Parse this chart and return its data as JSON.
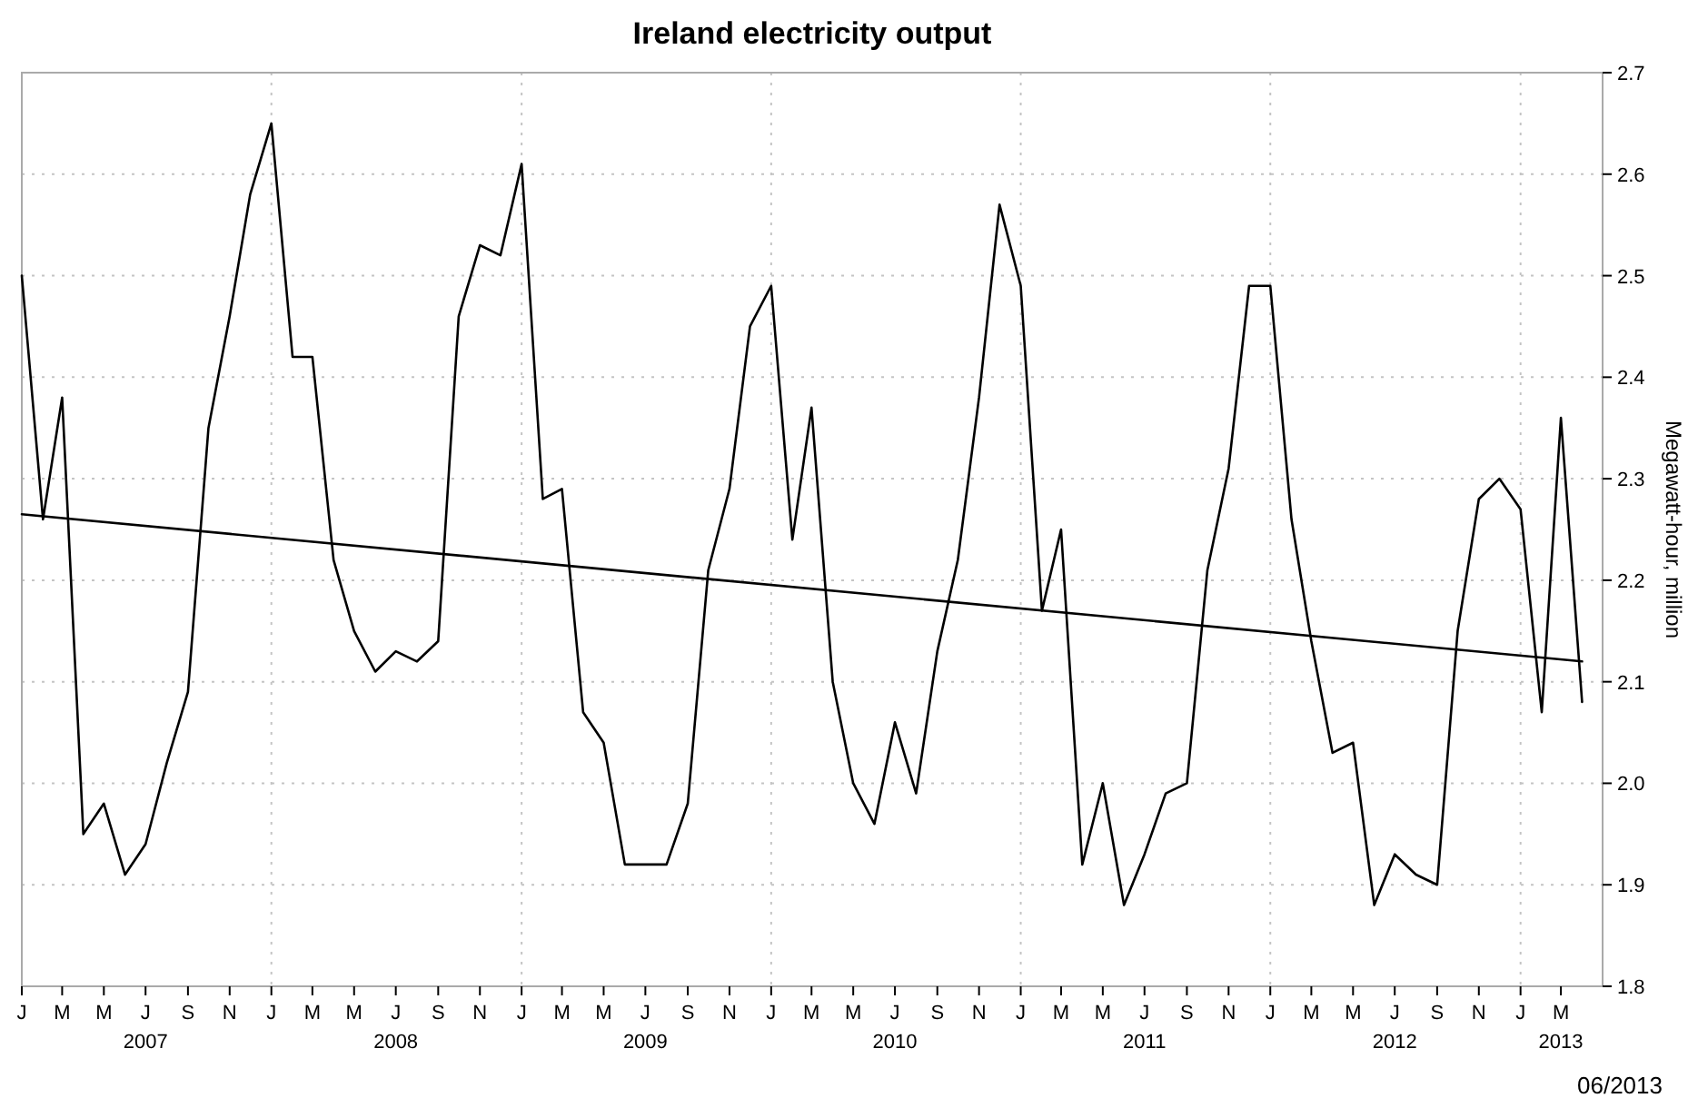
{
  "chart_data": {
    "type": "line",
    "title": "Ireland electricity output",
    "ylabel": "Megawatt-hour, million",
    "x": [
      "2007-01",
      "2007-02",
      "2007-03",
      "2007-04",
      "2007-05",
      "2007-06",
      "2007-07",
      "2007-08",
      "2007-09",
      "2007-10",
      "2007-11",
      "2007-12",
      "2008-01",
      "2008-02",
      "2008-03",
      "2008-04",
      "2008-05",
      "2008-06",
      "2008-07",
      "2008-08",
      "2008-09",
      "2008-10",
      "2008-11",
      "2008-12",
      "2009-01",
      "2009-02",
      "2009-03",
      "2009-04",
      "2009-05",
      "2009-06",
      "2009-07",
      "2009-08",
      "2009-09",
      "2009-10",
      "2009-11",
      "2009-12",
      "2010-01",
      "2010-02",
      "2010-03",
      "2010-04",
      "2010-05",
      "2010-06",
      "2010-07",
      "2010-08",
      "2010-09",
      "2010-10",
      "2010-11",
      "2010-12",
      "2011-01",
      "2011-02",
      "2011-03",
      "2011-04",
      "2011-05",
      "2011-06",
      "2011-07",
      "2011-08",
      "2011-09",
      "2011-10",
      "2011-11",
      "2011-12",
      "2012-01",
      "2012-02",
      "2012-03",
      "2012-04",
      "2012-05",
      "2012-06",
      "2012-07",
      "2012-08",
      "2012-09",
      "2012-10",
      "2012-11",
      "2012-12",
      "2013-01",
      "2013-02",
      "2013-03",
      "2013-04"
    ],
    "series": [
      {
        "color": "#000000",
        "values": [
          2.5,
          2.26,
          2.38,
          1.95,
          1.98,
          1.91,
          1.94,
          2.02,
          2.09,
          2.35,
          2.46,
          2.58,
          2.65,
          2.42,
          2.42,
          2.22,
          2.15,
          2.11,
          2.13,
          2.12,
          2.14,
          2.46,
          2.53,
          2.52,
          2.61,
          2.28,
          2.29,
          2.07,
          2.04,
          1.92,
          1.92,
          1.92,
          1.98,
          2.21,
          2.29,
          2.45,
          2.49,
          2.24,
          2.37,
          2.1,
          2.0,
          1.96,
          2.06,
          1.99,
          2.13,
          2.22,
          2.38,
          2.57,
          2.49,
          2.17,
          2.25,
          1.92,
          2.0,
          1.88,
          1.93,
          1.99,
          2.0,
          2.21,
          2.31,
          2.49,
          2.49,
          2.26,
          2.14,
          2.03,
          2.04,
          1.88,
          1.93,
          1.91,
          1.9,
          2.15,
          2.28,
          2.3,
          2.27,
          2.07,
          2.36,
          2.08
        ]
      },
      {
        "type": "line",
        "color": "#000000",
        "x": [
          "2007-01",
          "2013-04"
        ],
        "values": [
          2.265,
          2.12
        ]
      }
    ],
    "xlim": [
      "2007-01",
      "2013-05"
    ],
    "xticks": [
      {
        "value": "2007-01",
        "label": "J"
      },
      {
        "value": "2007-03",
        "label": "M"
      },
      {
        "value": "2007-05",
        "label": "M"
      },
      {
        "value": "2007-07",
        "label": "J\n2007"
      },
      {
        "value": "2007-09",
        "label": "S"
      },
      {
        "value": "2007-11",
        "label": "N"
      },
      {
        "value": "2008-01",
        "label": "J"
      },
      {
        "value": "2008-03",
        "label": "M"
      },
      {
        "value": "2008-05",
        "label": "M"
      },
      {
        "value": "2008-07",
        "label": "J\n2008"
      },
      {
        "value": "2008-09",
        "label": "S"
      },
      {
        "value": "2008-11",
        "label": "N"
      },
      {
        "value": "2009-01",
        "label": "J"
      },
      {
        "value": "2009-03",
        "label": "M"
      },
      {
        "value": "2009-05",
        "label": "M"
      },
      {
        "value": "2009-07",
        "label": "J\n2009"
      },
      {
        "value": "2009-09",
        "label": "S"
      },
      {
        "value": "2009-11",
        "label": "N"
      },
      {
        "value": "2010-01",
        "label": "J"
      },
      {
        "value": "2010-03",
        "label": "M"
      },
      {
        "value": "2010-05",
        "label": "M"
      },
      {
        "value": "2010-07",
        "label": "J\n2010"
      },
      {
        "value": "2010-09",
        "label": "S"
      },
      {
        "value": "2010-11",
        "label": "N"
      },
      {
        "value": "2011-01",
        "label": "J"
      },
      {
        "value": "2011-03",
        "label": "M"
      },
      {
        "value": "2011-05",
        "label": "M"
      },
      {
        "value": "2011-07",
        "label": "J\n2011"
      },
      {
        "value": "2011-09",
        "label": "S"
      },
      {
        "value": "2011-11",
        "label": "N"
      },
      {
        "value": "2012-01",
        "label": "J"
      },
      {
        "value": "2012-03",
        "label": "M"
      },
      {
        "value": "2012-05",
        "label": "M"
      },
      {
        "value": "2012-07",
        "label": "J\n2012"
      },
      {
        "value": "2012-09",
        "label": "S"
      },
      {
        "value": "2012-11",
        "label": "N"
      },
      {
        "value": "2013-01",
        "label": "J"
      },
      {
        "value": "2013-03",
        "label": "M\n2013"
      }
    ],
    "ylim": [
      1.8,
      2.7
    ],
    "yticks": [
      1.8,
      1.9,
      {
        "value": 2,
        "label": "2.0"
      },
      2.1,
      2.2,
      2.3,
      2.4,
      2.5,
      2.6,
      2.7
    ],
    "grid": true,
    "annotations": [
      "06/2013"
    ]
  }
}
